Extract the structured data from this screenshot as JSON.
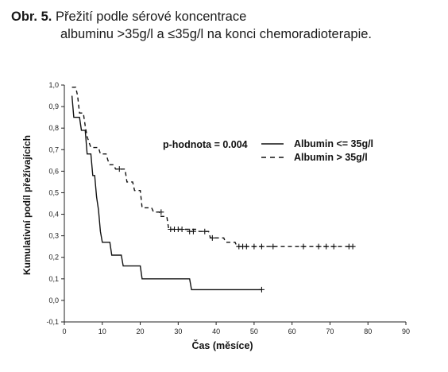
{
  "caption": {
    "label": "Obr. 5.",
    "line1": "Přežití podle sérové koncentrace",
    "line2": "albuminu >35g/l a ≤35g/l na konci chemoradioterapie."
  },
  "chart_data": {
    "type": "line",
    "step": true,
    "xlabel": "Čas (měsíce)",
    "ylabel": "Kumulativní podíl přežívajících",
    "xlim": [
      0,
      90
    ],
    "ylim": [
      -0.1,
      1.0
    ],
    "x_ticks": [
      "0",
      "10",
      "20",
      "30",
      "40",
      "50",
      "60",
      "70",
      "80",
      "90"
    ],
    "y_ticks": [
      "-0,1",
      "0,0",
      "0,1",
      "0,2",
      "0,3",
      "0,4",
      "0,5",
      "0,6",
      "0,7",
      "0,8",
      "0,9",
      "1,0"
    ],
    "annotation": "p-hodnota = 0.004",
    "legend_position": "top-right",
    "series": [
      {
        "name": "Albumin <= 35g/l",
        "style": "solid",
        "points": [
          [
            2,
            0.95
          ],
          [
            2.5,
            0.85
          ],
          [
            4,
            0.85
          ],
          [
            4.5,
            0.79
          ],
          [
            5.5,
            0.79
          ],
          [
            6,
            0.68
          ],
          [
            7,
            0.68
          ],
          [
            7.5,
            0.58
          ],
          [
            8,
            0.58
          ],
          [
            8.5,
            0.48
          ],
          [
            9,
            0.42
          ],
          [
            9.5,
            0.32
          ],
          [
            10,
            0.27
          ],
          [
            12,
            0.27
          ],
          [
            12.5,
            0.21
          ],
          [
            15,
            0.21
          ],
          [
            15.5,
            0.16
          ],
          [
            20,
            0.16
          ],
          [
            20.5,
            0.1
          ],
          [
            33,
            0.1
          ],
          [
            33.5,
            0.05
          ],
          [
            52,
            0.05
          ]
        ],
        "censored": [
          [
            52,
            0.05
          ]
        ]
      },
      {
        "name": "Albumin > 35g/l",
        "style": "dashed",
        "points": [
          [
            2,
            0.99
          ],
          [
            3,
            0.99
          ],
          [
            3.5,
            0.95
          ],
          [
            4,
            0.87
          ],
          [
            5,
            0.87
          ],
          [
            5.5,
            0.81
          ],
          [
            6,
            0.76
          ],
          [
            7,
            0.71
          ],
          [
            9,
            0.71
          ],
          [
            9.5,
            0.68
          ],
          [
            11,
            0.68
          ],
          [
            11.5,
            0.65
          ],
          [
            12,
            0.63
          ],
          [
            13,
            0.63
          ],
          [
            13.5,
            0.61
          ],
          [
            16,
            0.61
          ],
          [
            16.5,
            0.55
          ],
          [
            18,
            0.55
          ],
          [
            18.5,
            0.51
          ],
          [
            20,
            0.51
          ],
          [
            20.5,
            0.43
          ],
          [
            23,
            0.43
          ],
          [
            23.5,
            0.41
          ],
          [
            25,
            0.41
          ],
          [
            25.5,
            0.39
          ],
          [
            27,
            0.39
          ],
          [
            27.5,
            0.33
          ],
          [
            35,
            0.33
          ],
          [
            35.5,
            0.32
          ],
          [
            38,
            0.32
          ],
          [
            38.5,
            0.29
          ],
          [
            42,
            0.29
          ],
          [
            42.5,
            0.27
          ],
          [
            45,
            0.27
          ],
          [
            45.5,
            0.25
          ],
          [
            76,
            0.25
          ]
        ],
        "censored": [
          [
            14.5,
            0.61
          ],
          [
            25.5,
            0.41
          ],
          [
            28,
            0.33
          ],
          [
            29,
            0.33
          ],
          [
            30,
            0.33
          ],
          [
            31,
            0.33
          ],
          [
            33,
            0.32
          ],
          [
            34,
            0.32
          ],
          [
            37,
            0.32
          ],
          [
            39,
            0.29
          ],
          [
            46,
            0.25
          ],
          [
            47,
            0.25
          ],
          [
            48,
            0.25
          ],
          [
            50,
            0.25
          ],
          [
            52,
            0.25
          ],
          [
            55,
            0.25
          ],
          [
            63,
            0.25
          ],
          [
            67,
            0.25
          ],
          [
            69,
            0.25
          ],
          [
            71,
            0.25
          ],
          [
            75,
            0.25
          ],
          [
            76,
            0.25
          ]
        ]
      }
    ]
  }
}
